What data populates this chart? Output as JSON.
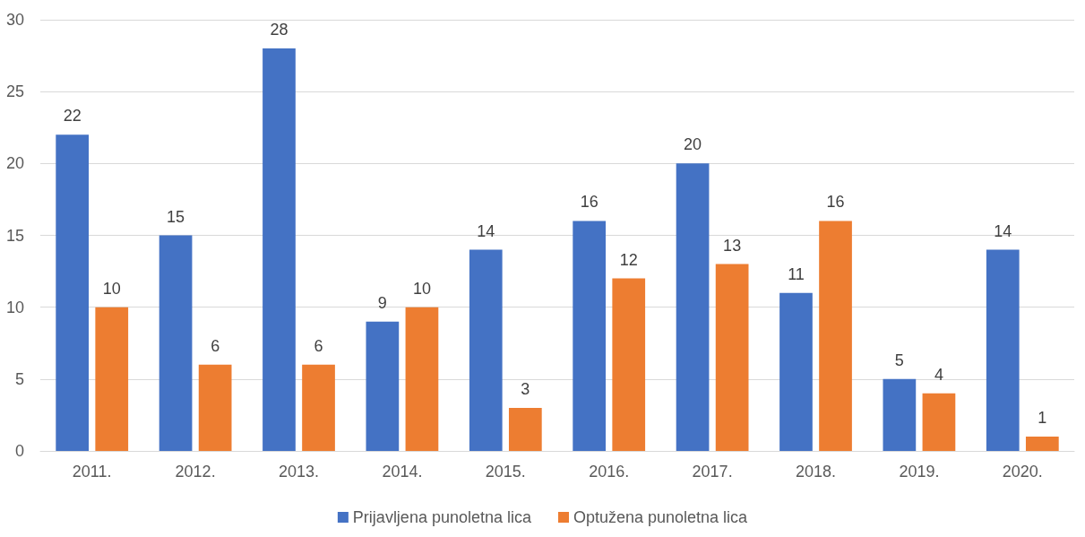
{
  "chart_data": {
    "type": "bar",
    "categories": [
      "2011.",
      "2012.",
      "2013.",
      "2014.",
      "2015.",
      "2016.",
      "2017.",
      "2018.",
      "2019.",
      "2020."
    ],
    "series": [
      {
        "name": "Prijavljena punoletna lica",
        "color": "#4472c4",
        "values": [
          22,
          15,
          28,
          9,
          14,
          16,
          20,
          11,
          5,
          14
        ]
      },
      {
        "name": "Optužena punoletna lica",
        "color": "#ed7d31",
        "values": [
          10,
          6,
          6,
          10,
          3,
          12,
          13,
          16,
          4,
          1
        ]
      }
    ],
    "ylim": [
      0,
      30
    ],
    "yticks": [
      0,
      5,
      10,
      15,
      20,
      25,
      30
    ],
    "grid": "y",
    "legend": "bottom",
    "data_labels": true
  }
}
